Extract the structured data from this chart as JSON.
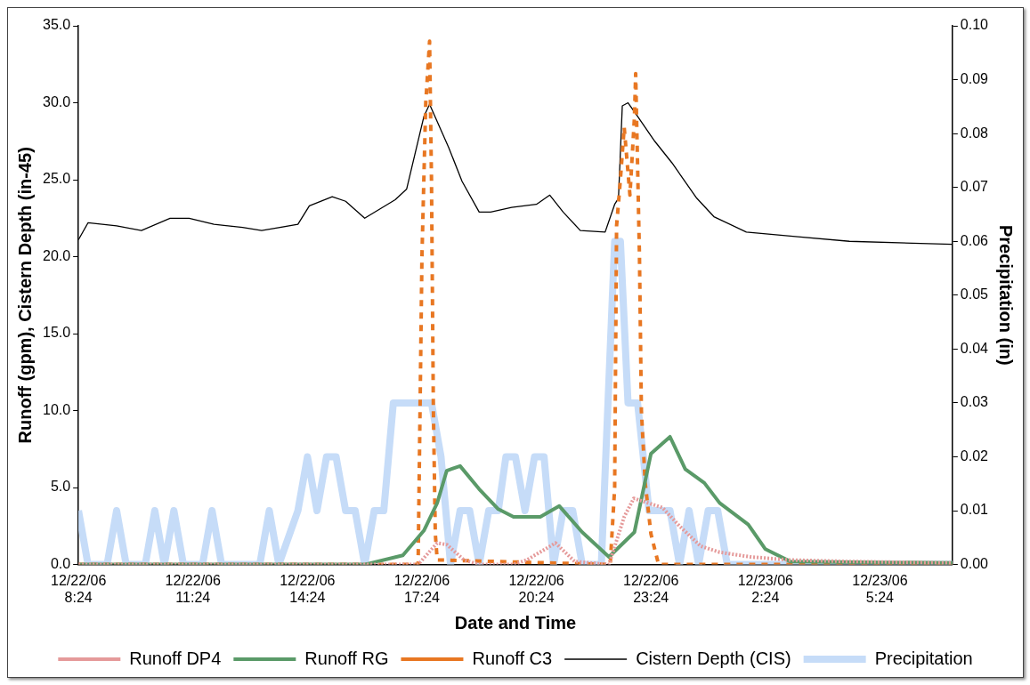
{
  "chart_data": {
    "type": "line",
    "xlabel": "Date and Time",
    "ylabel": "Runoff (gpm), Cistern Depth (in-45)",
    "y2label": "Precipitation (in)",
    "legend": "bottom",
    "marker": "none",
    "xlim": [
      "--12-22T08:24",
      "--12-23T07:18"
    ],
    "xticks": [
      {
        "value": "--12-22T08:24",
        "label": "12/22/06 8:24"
      },
      {
        "value": "--12-22T11:24",
        "label": "12/22/06 11:24"
      },
      {
        "value": "--12-22T14:24",
        "label": "12/22/06 14:24"
      },
      {
        "value": "--12-22T17:24",
        "label": "12/22/06 17:24"
      },
      {
        "value": "--12-22T20:24",
        "label": "12/22/06 20:24"
      },
      {
        "value": "--12-22T23:24",
        "label": "12/22/06 23:24"
      },
      {
        "value": "--12-23T02:24",
        "label": "12/23/06 2:24"
      },
      {
        "value": "--12-23T05:24",
        "label": "12/23/06 5:24"
      }
    ],
    "ylim": [
      0,
      35
    ],
    "yticks": [
      {
        "value": 0,
        "label": "0.0"
      },
      {
        "value": 5,
        "label": "5.0"
      },
      {
        "value": 10,
        "label": "10.0"
      },
      {
        "value": 15,
        "label": "15.0"
      },
      {
        "value": 20,
        "label": "20.0"
      },
      {
        "value": 25,
        "label": "25.0"
      },
      {
        "value": 30,
        "label": "30.0"
      },
      {
        "value": 35,
        "label": "35.0"
      }
    ],
    "y2lim": [
      0,
      0.1
    ],
    "y2ticks": [
      {
        "value": 0,
        "label": "0.00"
      },
      {
        "value": 0.01,
        "label": "0.01"
      },
      {
        "value": 0.02,
        "label": "0.02"
      },
      {
        "value": 0.03,
        "label": "0.03"
      },
      {
        "value": 0.04,
        "label": "0.04"
      },
      {
        "value": 0.05,
        "label": "0.05"
      },
      {
        "value": 0.06,
        "label": "0.06"
      },
      {
        "value": 0.07,
        "label": "0.07"
      },
      {
        "value": 0.08,
        "label": "0.08"
      },
      {
        "value": 0.09,
        "label": "0.09"
      },
      {
        "value": 0.1,
        "label": "0.10"
      }
    ],
    "series": [
      {
        "name": "Runoff DP4",
        "color": "#e59a9a",
        "line_style": "dotted",
        "x": [
          "--12-22T08:24",
          "--12-22T17:18",
          "--12-22T17:48",
          "--12-22T18:03",
          "--12-22T18:30",
          "--12-22T18:54",
          "--12-22T19:48",
          "--12-22T20:09",
          "--12-22T20:54",
          "--12-22T21:24",
          "--12-22T22:18",
          "--12-22T22:42",
          "--12-22T22:57",
          "--12-22T23:42",
          "--12-23T00:09",
          "--12-23T00:42",
          "--12-23T01:12",
          "--12-23T02:00",
          "--12-23T03:00",
          "--12-23T04:30",
          "--12-23T07:18"
        ],
        "values": [
          0,
          0,
          1.4,
          1.3,
          0.3,
          0,
          0,
          0.3,
          1.4,
          0.2,
          0,
          3.1,
          4.3,
          3.7,
          2.5,
          1.2,
          0.8,
          0.5,
          0.3,
          0.2,
          0.1
        ]
      },
      {
        "name": "Runoff RG",
        "color": "#5a9a68",
        "line_style": "solid",
        "x": [
          "--12-22T08:24",
          "--12-22T15:54",
          "--12-22T16:54",
          "--12-22T17:27",
          "--12-22T17:48",
          "--12-22T18:03",
          "--12-22T18:24",
          "--12-22T18:54",
          "--12-22T19:24",
          "--12-22T19:48",
          "--12-22T20:30",
          "--12-22T21:00",
          "--12-22T21:36",
          "--12-22T22:18",
          "--12-22T22:58",
          "--12-22T23:24",
          "--12-22T23:54",
          "--12-23T00:18",
          "--12-23T00:48",
          "--12-23T01:12",
          "--12-23T01:57",
          "--12-23T02:24",
          "--12-23T03:03",
          "--12-23T07:18"
        ],
        "values": [
          0,
          0,
          0.6,
          2.2,
          4.0,
          6.1,
          6.4,
          4.9,
          3.6,
          3.1,
          3.1,
          3.8,
          2.1,
          0.5,
          2.1,
          7.2,
          8.3,
          6.2,
          5.3,
          4.0,
          2.6,
          1.0,
          0.2,
          0.1
        ]
      },
      {
        "name": "Runoff C3",
        "color": "#e87722",
        "line_style": "dashed",
        "x": [
          "--12-22T08:24",
          "--12-22T17:18",
          "--12-22T17:21",
          "--12-22T17:24",
          "--12-22T17:27",
          "--12-22T17:30",
          "--12-22T17:36",
          "--12-22T17:39",
          "--12-22T17:42",
          "--12-22T17:45",
          "--12-22T17:48",
          "--12-22T22:20",
          "--12-22T22:27",
          "--12-22T22:30",
          "--12-22T22:36",
          "--12-22T22:42",
          "--12-22T22:51",
          "--12-22T22:58",
          "--12-22T23:00",
          "--12-22T23:06",
          "--12-22T23:09",
          "--12-22T23:15",
          "--12-22T23:24",
          "--12-22T23:36",
          "--12-23T07:18"
        ],
        "values": [
          0,
          0,
          10,
          20,
          25,
          30,
          34,
          25,
          10,
          2,
          0.3,
          0,
          5,
          22,
          25,
          28.4,
          24,
          29,
          31.9,
          20,
          10,
          5.3,
          2,
          0,
          0
        ]
      },
      {
        "name": "Cistern Depth (CIS)",
        "color": "#000000",
        "line_style": "solid",
        "x": [
          "--12-22T08:24",
          "--12-22T08:39",
          "--12-22T09:24",
          "--12-22T10:03",
          "--12-22T10:48",
          "--12-22T11:18",
          "--12-22T11:57",
          "--12-22T12:42",
          "--12-22T13:12",
          "--12-22T14:09",
          "--12-22T14:27",
          "--12-22T15:03",
          "--12-22T15:24",
          "--12-22T15:54",
          "--12-22T16:42",
          "--12-22T17:00",
          "--12-22T17:27",
          "--12-22T17:36",
          "--12-22T18:06",
          "--12-22T18:27",
          "--12-22T18:54",
          "--12-22T19:12",
          "--12-22T19:45",
          "--12-22T20:24",
          "--12-22T20:45",
          "--12-22T21:06",
          "--12-22T21:33",
          "--12-22T22:12",
          "--12-22T22:27",
          "--12-22T22:33",
          "--12-22T22:39",
          "--12-22T22:48",
          "--12-22T23:00",
          "--12-22T23:30",
          "--12-22T23:57",
          "--12-23T00:36",
          "--12-23T01:03",
          "--12-23T01:54",
          "--12-23T03:15",
          "--12-23T04:36",
          "--12-23T07:18"
        ],
        "values": [
          21.1,
          22.2,
          22.0,
          21.7,
          22.5,
          22.5,
          22.1,
          21.9,
          21.7,
          22.1,
          23.3,
          23.9,
          23.6,
          22.5,
          23.7,
          24.4,
          29.1,
          29.9,
          27.1,
          24.9,
          22.9,
          22.9,
          23.2,
          23.4,
          24.0,
          22.9,
          21.7,
          21.6,
          23.4,
          23.8,
          29.8,
          30.0,
          29.3,
          27.5,
          26.1,
          23.8,
          22.6,
          21.6,
          21.3,
          21.0,
          20.8
        ]
      },
      {
        "name": "Precipitation",
        "color": "#c6dcf8",
        "line_style": "solid",
        "axis": "y2",
        "x": [
          "--12-22T08:24",
          "--12-22T08:39",
          "--12-22T09:09",
          "--12-22T09:24",
          "--12-22T09:39",
          "--12-22T10:09",
          "--12-22T10:24",
          "--12-22T10:39",
          "--12-22T10:54",
          "--12-22T11:09",
          "--12-22T11:39",
          "--12-22T11:54",
          "--12-22T12:09",
          "--12-22T13:09",
          "--12-22T13:24",
          "--12-22T13:39",
          "--12-22T14:09",
          "--12-22T14:24",
          "--12-22T14:39",
          "--12-22T14:54",
          "--12-22T15:09",
          "--12-22T15:24",
          "--12-22T15:39",
          "--12-22T15:54",
          "--12-22T16:09",
          "--12-22T16:24",
          "--12-22T16:39",
          "--12-22T17:39",
          "--12-22T17:54",
          "--12-22T18:09",
          "--12-22T18:24",
          "--12-22T18:39",
          "--12-22T18:54",
          "--12-22T19:09",
          "--12-22T19:24",
          "--12-22T19:36",
          "--12-22T19:51",
          "--12-22T20:06",
          "--12-22T20:21",
          "--12-22T20:36",
          "--12-22T20:51",
          "--12-22T21:06",
          "--12-22T21:21",
          "--12-22T21:36",
          "--12-22T22:06",
          "--12-22T22:27",
          "--12-22T22:36",
          "--12-22T22:48",
          "--12-22T23:03",
          "--12-22T23:21",
          "--12-22T23:39",
          "--12-22T23:54",
          "--12-23T00:09",
          "--12-23T00:24",
          "--12-23T00:39",
          "--12-23T00:54",
          "--12-23T01:09",
          "--12-23T01:24",
          "--12-23T07:18"
        ],
        "values": [
          0.01,
          0,
          0,
          0.01,
          0,
          0,
          0.01,
          0,
          0.01,
          0,
          0,
          0.01,
          0,
          0,
          0.01,
          0,
          0.01,
          0.02,
          0.01,
          0.02,
          0.02,
          0.01,
          0.01,
          0,
          0.01,
          0.01,
          0.03,
          0.03,
          0.02,
          0,
          0.01,
          0.01,
          0,
          0.01,
          0.01,
          0.02,
          0.02,
          0.01,
          0.02,
          0.02,
          0,
          0.01,
          0.01,
          0,
          0,
          0.06,
          0.06,
          0.03,
          0.03,
          0.01,
          0.01,
          0.01,
          0,
          0.01,
          0,
          0.01,
          0.01,
          0,
          0
        ]
      }
    ]
  }
}
